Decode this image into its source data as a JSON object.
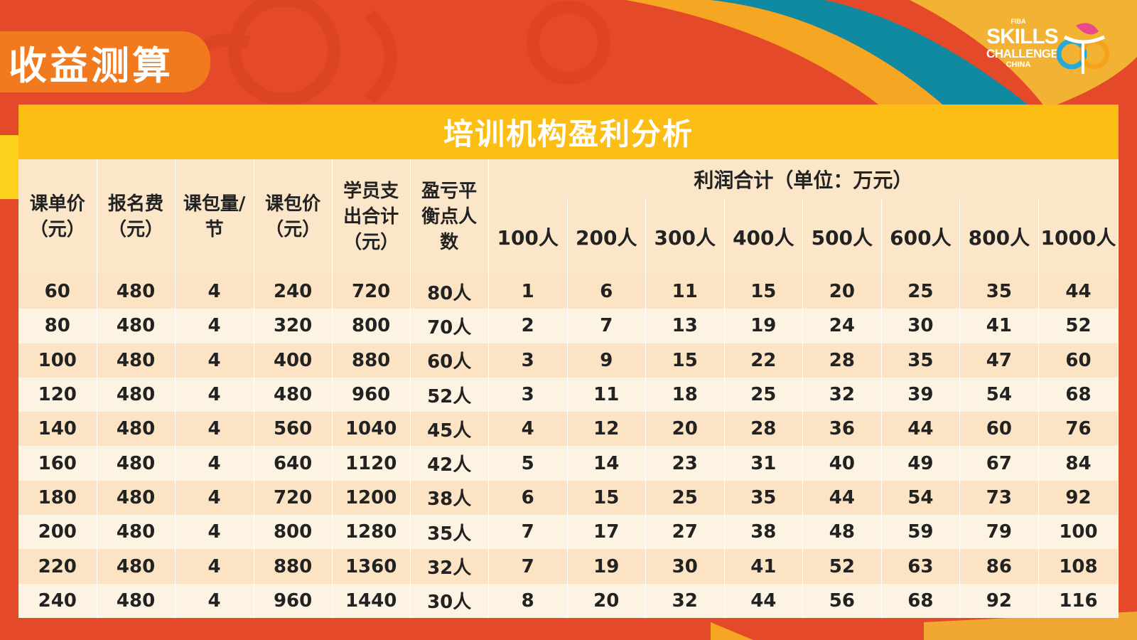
{
  "page": {
    "title": "收益测算",
    "accent_color": "#e4492a"
  },
  "logo": {
    "fiba": "FIBA",
    "line1": "SKILLS",
    "line2": "CHALLENGE",
    "line3": "CHINA"
  },
  "table": {
    "title": "培训机构盈利分析",
    "headers": [
      "课单价（元）",
      "报名费（元）",
      "课包量/节",
      "课包价（元）",
      "学员支出合计（元）",
      "盈亏平衡点人数"
    ],
    "profit_group_header": "利润合计（单位：万元）",
    "profit_columns": [
      "100人",
      "200人",
      "300人",
      "400人",
      "500人",
      "600人",
      "800人",
      "1000人"
    ],
    "rows": [
      [
        "60",
        "480",
        "4",
        "240",
        "720",
        "80人",
        "1",
        "6",
        "11",
        "15",
        "20",
        "25",
        "35",
        "44"
      ],
      [
        "80",
        "480",
        "4",
        "320",
        "800",
        "70人",
        "2",
        "7",
        "13",
        "19",
        "24",
        "30",
        "41",
        "52"
      ],
      [
        "100",
        "480",
        "4",
        "400",
        "880",
        "60人",
        "3",
        "9",
        "15",
        "22",
        "28",
        "35",
        "47",
        "60"
      ],
      [
        "120",
        "480",
        "4",
        "480",
        "960",
        "52人",
        "3",
        "11",
        "18",
        "25",
        "32",
        "39",
        "54",
        "68"
      ],
      [
        "140",
        "480",
        "4",
        "560",
        "1040",
        "45人",
        "4",
        "12",
        "20",
        "28",
        "36",
        "44",
        "60",
        "76"
      ],
      [
        "160",
        "480",
        "4",
        "640",
        "1120",
        "42人",
        "5",
        "14",
        "23",
        "31",
        "40",
        "49",
        "67",
        "84"
      ],
      [
        "180",
        "480",
        "4",
        "720",
        "1200",
        "38人",
        "6",
        "15",
        "25",
        "35",
        "44",
        "54",
        "73",
        "92"
      ],
      [
        "200",
        "480",
        "4",
        "800",
        "1280",
        "35人",
        "7",
        "17",
        "27",
        "38",
        "48",
        "59",
        "79",
        "100"
      ],
      [
        "220",
        "480",
        "4",
        "880",
        "1360",
        "32人",
        "7",
        "19",
        "30",
        "41",
        "52",
        "63",
        "86",
        "108"
      ],
      [
        "240",
        "480",
        "4",
        "960",
        "1440",
        "30人",
        "8",
        "20",
        "32",
        "44",
        "56",
        "68",
        "92",
        "116"
      ]
    ]
  }
}
